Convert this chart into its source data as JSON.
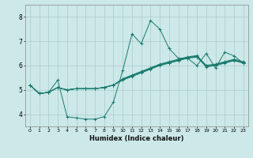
{
  "title": "",
  "xlabel": "Humidex (Indice chaleur)",
  "ylabel": "",
  "xlim": [
    -0.5,
    23.5
  ],
  "ylim": [
    3.5,
    8.5
  ],
  "yticks": [
    4,
    5,
    6,
    7,
    8
  ],
  "xticks": [
    0,
    1,
    2,
    3,
    4,
    5,
    6,
    7,
    8,
    9,
    10,
    11,
    12,
    13,
    14,
    15,
    16,
    17,
    18,
    19,
    20,
    21,
    22,
    23
  ],
  "bg_color": "#cce8e8",
  "grid_color": "#aacccc",
  "line_color": "#1a7a6e",
  "lines": [
    [
      5.2,
      4.85,
      4.9,
      5.4,
      3.9,
      3.85,
      3.8,
      3.8,
      3.9,
      4.5,
      5.8,
      7.3,
      6.9,
      7.85,
      7.5,
      6.7,
      6.3,
      6.3,
      6.0,
      6.5,
      5.9,
      6.55,
      6.4,
      6.1
    ],
    [
      5.2,
      4.85,
      4.9,
      5.1,
      5.0,
      5.05,
      5.05,
      5.05,
      5.1,
      5.2,
      5.4,
      5.55,
      5.7,
      5.85,
      6.0,
      6.1,
      6.2,
      6.3,
      6.35,
      5.95,
      6.0,
      6.1,
      6.2,
      6.1
    ],
    [
      5.2,
      4.85,
      4.9,
      5.1,
      5.0,
      5.05,
      5.05,
      5.05,
      5.1,
      5.2,
      5.42,
      5.57,
      5.72,
      5.87,
      6.02,
      6.12,
      6.22,
      6.32,
      6.37,
      5.97,
      6.02,
      6.12,
      6.22,
      6.12
    ],
    [
      5.2,
      4.85,
      4.9,
      5.1,
      5.0,
      5.05,
      5.05,
      5.05,
      5.1,
      5.2,
      5.44,
      5.59,
      5.74,
      5.89,
      6.04,
      6.14,
      6.24,
      6.34,
      6.39,
      5.99,
      6.04,
      6.14,
      6.24,
      6.14
    ],
    [
      5.2,
      4.85,
      4.9,
      5.1,
      5.0,
      5.05,
      5.05,
      5.05,
      5.1,
      5.2,
      5.46,
      5.61,
      5.76,
      5.91,
      6.06,
      6.16,
      6.26,
      6.36,
      6.41,
      6.01,
      6.06,
      6.16,
      6.26,
      6.16
    ]
  ]
}
